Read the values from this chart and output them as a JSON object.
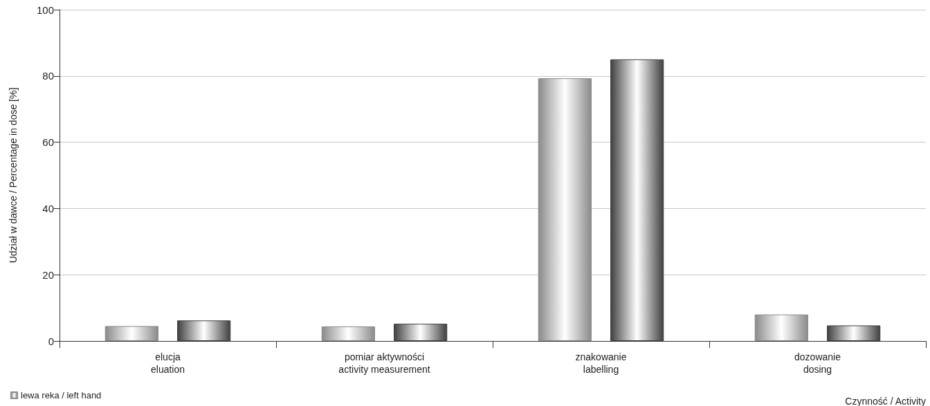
{
  "chart_data": {
    "type": "bar",
    "xlabel": "Czynność / Activity",
    "ylabel": "Udział w dawce / Percentage in dose [%]",
    "categories": [
      "elucja\neluation",
      "pomiar aktywności\nactivity measurement",
      "znakowanie\nlabelling",
      "dozowanie\ndosing"
    ],
    "series": [
      {
        "name": "lewa reka / left hand",
        "color": "#8a8a8a",
        "values": [
          4.5,
          4.4,
          79.3,
          8.0
        ]
      },
      {
        "color": "#404040",
        "values": [
          6.2,
          5.2,
          85.0,
          4.7
        ]
      }
    ],
    "ylim": [
      0,
      100
    ],
    "yticks": [
      0,
      20,
      40,
      60,
      80,
      100
    ],
    "grid": "y",
    "legend": "bottom left"
  }
}
